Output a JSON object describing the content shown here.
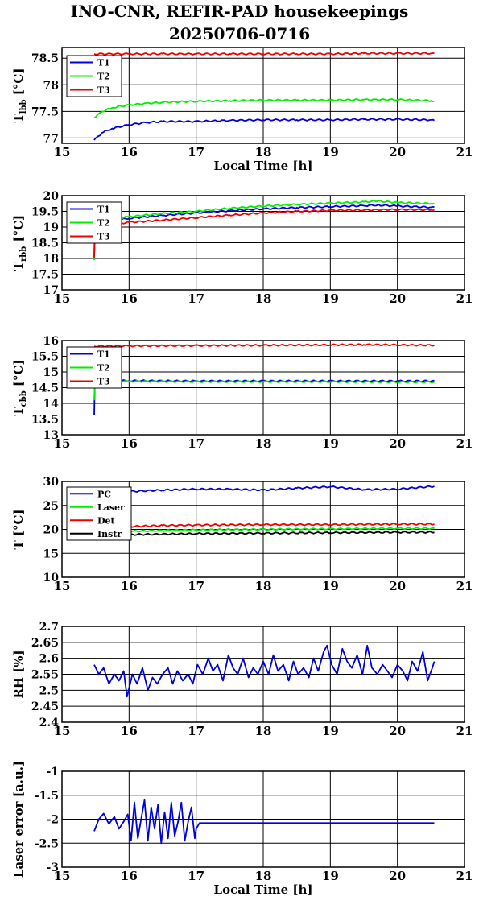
{
  "title_line1": "INO-CNR, REFIR-PAD housekeepings",
  "title_line2": "20250706-0716",
  "colors": {
    "blue": "#0000dd",
    "green": "#00ee00",
    "red": "#ee0000",
    "black": "#000000"
  },
  "chart_data": [
    {
      "type": "line",
      "ylabel": "T",
      "ylabel_sub": "lbb",
      "ylabel_suffix": " [°C]",
      "xlabel": "Local Time [h]",
      "xlim": [
        15,
        21
      ],
      "ylim": [
        76.9,
        78.7
      ],
      "yticks": [
        77,
        77.5,
        78,
        78.5
      ],
      "ytick_labels": [
        "77",
        "77.5",
        "78",
        "78.5"
      ],
      "xticks": [
        15,
        16,
        17,
        18,
        19,
        20,
        21
      ],
      "grid": true,
      "legend": "top-left",
      "series": [
        {
          "name": "T1",
          "color": "#0000dd",
          "x": [
            15.48,
            15.6,
            15.75,
            16,
            16.25,
            16.5,
            17,
            17.5,
            18,
            18.5,
            19,
            19.5,
            20,
            20.5,
            20.55
          ],
          "y": [
            76.96,
            77.1,
            77.18,
            77.25,
            77.29,
            77.31,
            77.31,
            77.33,
            77.34,
            77.34,
            77.34,
            77.35,
            77.35,
            77.34,
            77.33
          ]
        },
        {
          "name": "T2",
          "color": "#00ee00",
          "x": [
            15.48,
            15.6,
            15.75,
            16,
            16.25,
            16.5,
            17,
            17.5,
            18,
            18.5,
            19,
            19.5,
            20,
            20.5,
            20.55
          ],
          "y": [
            77.38,
            77.5,
            77.57,
            77.62,
            77.65,
            77.67,
            77.69,
            77.7,
            77.71,
            77.71,
            77.71,
            77.72,
            77.72,
            77.7,
            77.69
          ]
        },
        {
          "name": "T3",
          "color": "#ee0000",
          "x": [
            15.48,
            16,
            16.5,
            17,
            17.5,
            18,
            18.5,
            19,
            19.5,
            20,
            20.5,
            20.55
          ],
          "y": [
            78.58,
            78.58,
            78.58,
            78.58,
            78.58,
            78.58,
            78.58,
            78.58,
            78.59,
            78.59,
            78.59,
            78.59
          ]
        }
      ]
    },
    {
      "type": "line",
      "ylabel": "T",
      "ylabel_sub": "rbb",
      "ylabel_suffix": " [°C]",
      "xlabel": "",
      "xlim": [
        15,
        21
      ],
      "ylim": [
        17,
        20
      ],
      "yticks": [
        17,
        17.5,
        18,
        18.5,
        19,
        19.5,
        20
      ],
      "ytick_labels": [
        "17",
        "17.5",
        "18",
        "18.5",
        "19",
        "19.5",
        "20"
      ],
      "xticks": [
        15,
        16,
        17,
        18,
        19,
        20,
        21
      ],
      "grid": true,
      "legend": "top-left",
      "series": [
        {
          "name": "T1",
          "color": "#0000dd",
          "x": [
            15.48,
            15.49,
            15.6,
            16,
            16.5,
            17,
            17.5,
            18,
            18.5,
            19,
            19.5,
            19.7,
            20,
            20.5,
            20.55
          ],
          "y": [
            18.0,
            19.0,
            19.15,
            19.28,
            19.37,
            19.45,
            19.52,
            19.58,
            19.62,
            19.65,
            19.68,
            19.7,
            19.67,
            19.63,
            19.63
          ]
        },
        {
          "name": "T2",
          "color": "#00ee00",
          "x": [
            15.48,
            15.49,
            15.6,
            16,
            16.5,
            17,
            17.5,
            18,
            18.5,
            19,
            19.5,
            19.7,
            20,
            20.5,
            20.55
          ],
          "y": [
            17.95,
            19.1,
            19.2,
            19.33,
            19.43,
            19.5,
            19.6,
            19.67,
            19.72,
            19.76,
            19.8,
            19.83,
            19.78,
            19.75,
            19.75
          ]
        },
        {
          "name": "T3",
          "color": "#ee0000",
          "x": [
            15.48,
            15.49,
            15.6,
            16,
            16.5,
            17,
            17.5,
            18,
            18.5,
            19,
            19.5,
            20,
            20.5,
            20.55
          ],
          "y": [
            18.0,
            18.95,
            19.05,
            19.15,
            19.22,
            19.3,
            19.38,
            19.45,
            19.5,
            19.53,
            19.54,
            19.56,
            19.55,
            19.55
          ]
        }
      ]
    },
    {
      "type": "line",
      "ylabel": "T",
      "ylabel_sub": "cbb",
      "ylabel_suffix": " [°C]",
      "xlabel": "",
      "xlim": [
        15,
        21
      ],
      "ylim": [
        13,
        16
      ],
      "yticks": [
        13,
        13.5,
        14,
        14.5,
        15,
        15.5,
        16
      ],
      "ytick_labels": [
        "13",
        "13.5",
        "14",
        "14.5",
        "15",
        "15.5",
        "16"
      ],
      "xticks": [
        15,
        16,
        17,
        18,
        19,
        20,
        21
      ],
      "grid": true,
      "legend": "top-left",
      "series": [
        {
          "name": "T1",
          "color": "#0000dd",
          "x": [
            15.48,
            15.49,
            15.6,
            16,
            17,
            18,
            19,
            20,
            20.55
          ],
          "y": [
            13.62,
            14.7,
            14.72,
            14.72,
            14.71,
            14.71,
            14.71,
            14.71,
            14.71
          ]
        },
        {
          "name": "T2",
          "color": "#00ee00",
          "x": [
            15.48,
            15.49,
            15.6,
            16,
            17,
            18,
            19,
            20,
            20.55
          ],
          "y": [
            14.1,
            14.68,
            14.7,
            14.7,
            14.69,
            14.69,
            14.69,
            14.68,
            14.68
          ]
        },
        {
          "name": "T3",
          "color": "#ee0000",
          "x": [
            15.48,
            16,
            17,
            18,
            19,
            19.5,
            20,
            20.55
          ],
          "y": [
            15.82,
            15.83,
            15.84,
            15.85,
            15.86,
            15.87,
            15.86,
            15.85
          ]
        }
      ]
    },
    {
      "type": "line",
      "ylabel": "T [°C]",
      "ylabel_sub": "",
      "ylabel_suffix": "",
      "xlabel": "",
      "xlim": [
        15,
        21
      ],
      "ylim": [
        10,
        30
      ],
      "yticks": [
        10,
        15,
        20,
        25,
        30
      ],
      "ytick_labels": [
        "10",
        "15",
        "20",
        "25",
        "30"
      ],
      "xticks": [
        15,
        16,
        17,
        18,
        19,
        20,
        21
      ],
      "grid": true,
      "legend": "top-left",
      "series": [
        {
          "name": "PC",
          "color": "#0000dd",
          "x": [
            15.48,
            16,
            16.5,
            17,
            17.5,
            18,
            18.5,
            19,
            19.5,
            20,
            20.55
          ],
          "y": [
            27.7,
            27.9,
            28.2,
            28.4,
            28.4,
            28.2,
            28.6,
            28.9,
            28.3,
            28.4,
            29.0
          ]
        },
        {
          "name": "Laser",
          "color": "#00ee00",
          "x": [
            15.48,
            16,
            17,
            18,
            19,
            20,
            20.55
          ],
          "y": [
            19.4,
            19.6,
            19.9,
            20.0,
            20.1,
            20.2,
            20.2
          ]
        },
        {
          "name": "Det",
          "color": "#ee0000",
          "x": [
            15.48,
            16,
            16.5,
            17,
            18,
            19,
            20,
            20.55
          ],
          "y": [
            20.3,
            20.6,
            20.8,
            20.9,
            21.0,
            21.0,
            21.1,
            21.1
          ]
        },
        {
          "name": "Instr",
          "color": "#000000",
          "x": [
            15.48,
            16,
            17,
            18,
            19,
            20,
            20.55
          ],
          "y": [
            18.8,
            18.9,
            19.1,
            19.2,
            19.3,
            19.4,
            19.4
          ]
        }
      ]
    },
    {
      "type": "line",
      "ylabel": "RH [%]",
      "ylabel_sub": "",
      "ylabel_suffix": "",
      "xlabel": "",
      "xlim": [
        15,
        21
      ],
      "ylim": [
        2.4,
        2.7
      ],
      "yticks": [
        2.4,
        2.45,
        2.5,
        2.55,
        2.6,
        2.65,
        2.7
      ],
      "ytick_labels": [
        "2.4",
        "2.45",
        "2.5",
        "2.55",
        "2.6",
        "2.65",
        "2.7"
      ],
      "xticks": [
        15,
        16,
        17,
        18,
        19,
        20,
        21
      ],
      "grid": true,
      "legend": "none",
      "series": [
        {
          "name": "",
          "color": "#0000dd",
          "x": [
            15.48,
            15.55,
            15.62,
            15.7,
            15.78,
            15.85,
            15.92,
            15.97,
            16.05,
            16.12,
            16.2,
            16.28,
            16.35,
            16.42,
            16.5,
            16.58,
            16.65,
            16.72,
            16.8,
            16.88,
            16.95,
            17.02,
            17.1,
            17.18,
            17.25,
            17.32,
            17.4,
            17.48,
            17.55,
            17.62,
            17.7,
            17.78,
            17.85,
            17.92,
            18.0,
            18.08,
            18.15,
            18.22,
            18.3,
            18.38,
            18.45,
            18.52,
            18.6,
            18.68,
            18.75,
            18.82,
            18.9,
            18.95,
            19.02,
            19.1,
            19.18,
            19.25,
            19.32,
            19.4,
            19.48,
            19.55,
            19.62,
            19.7,
            19.78,
            19.85,
            19.92,
            20.0,
            20.08,
            20.15,
            20.22,
            20.3,
            20.38,
            20.45,
            20.52,
            20.55
          ],
          "y": [
            2.58,
            2.55,
            2.57,
            2.52,
            2.55,
            2.53,
            2.56,
            2.48,
            2.55,
            2.52,
            2.57,
            2.5,
            2.54,
            2.52,
            2.55,
            2.57,
            2.52,
            2.56,
            2.53,
            2.55,
            2.52,
            2.58,
            2.55,
            2.6,
            2.56,
            2.58,
            2.53,
            2.61,
            2.57,
            2.55,
            2.6,
            2.54,
            2.57,
            2.55,
            2.59,
            2.55,
            2.61,
            2.56,
            2.58,
            2.53,
            2.59,
            2.55,
            2.57,
            2.54,
            2.6,
            2.56,
            2.62,
            2.64,
            2.58,
            2.55,
            2.63,
            2.59,
            2.57,
            2.61,
            2.55,
            2.64,
            2.57,
            2.55,
            2.58,
            2.56,
            2.54,
            2.58,
            2.56,
            2.53,
            2.59,
            2.56,
            2.62,
            2.53,
            2.57,
            2.59
          ]
        }
      ]
    },
    {
      "type": "line",
      "ylabel": "Laser error [a.u.]",
      "ylabel_sub": "",
      "ylabel_suffix": "",
      "xlabel": "Local Time [h]",
      "xlim": [
        15,
        21
      ],
      "ylim": [
        -3,
        -1
      ],
      "yticks": [
        -3,
        -2.5,
        -2,
        -1.5,
        -1
      ],
      "ytick_labels": [
        "-3",
        "-2.5",
        "-2",
        "-1.5",
        "-1"
      ],
      "xticks": [
        15,
        16,
        17,
        18,
        19,
        20,
        21
      ],
      "grid": true,
      "legend": "none",
      "series": [
        {
          "name": "",
          "color": "#0000dd",
          "x": [
            15.48,
            15.55,
            15.62,
            15.7,
            15.78,
            15.85,
            15.92,
            15.98,
            16.03,
            16.08,
            16.13,
            16.18,
            16.23,
            16.28,
            16.33,
            16.38,
            16.43,
            16.48,
            16.53,
            16.58,
            16.63,
            16.68,
            16.73,
            16.78,
            16.83,
            16.88,
            16.93,
            16.98,
            17.0,
            17.05,
            17.5,
            18,
            18.5,
            19,
            19.5,
            20,
            20.55
          ],
          "y": [
            -2.25,
            -2.0,
            -1.88,
            -2.1,
            -1.95,
            -2.2,
            -2.05,
            -1.9,
            -2.45,
            -1.65,
            -2.4,
            -2.0,
            -1.6,
            -2.45,
            -1.75,
            -2.2,
            -1.7,
            -2.5,
            -1.85,
            -2.4,
            -1.65,
            -2.35,
            -2.05,
            -1.65,
            -2.45,
            -2.05,
            -1.75,
            -2.4,
            -2.2,
            -2.08,
            -2.08,
            -2.08,
            -2.08,
            -2.08,
            -2.08,
            -2.08,
            -2.08
          ]
        }
      ]
    }
  ]
}
